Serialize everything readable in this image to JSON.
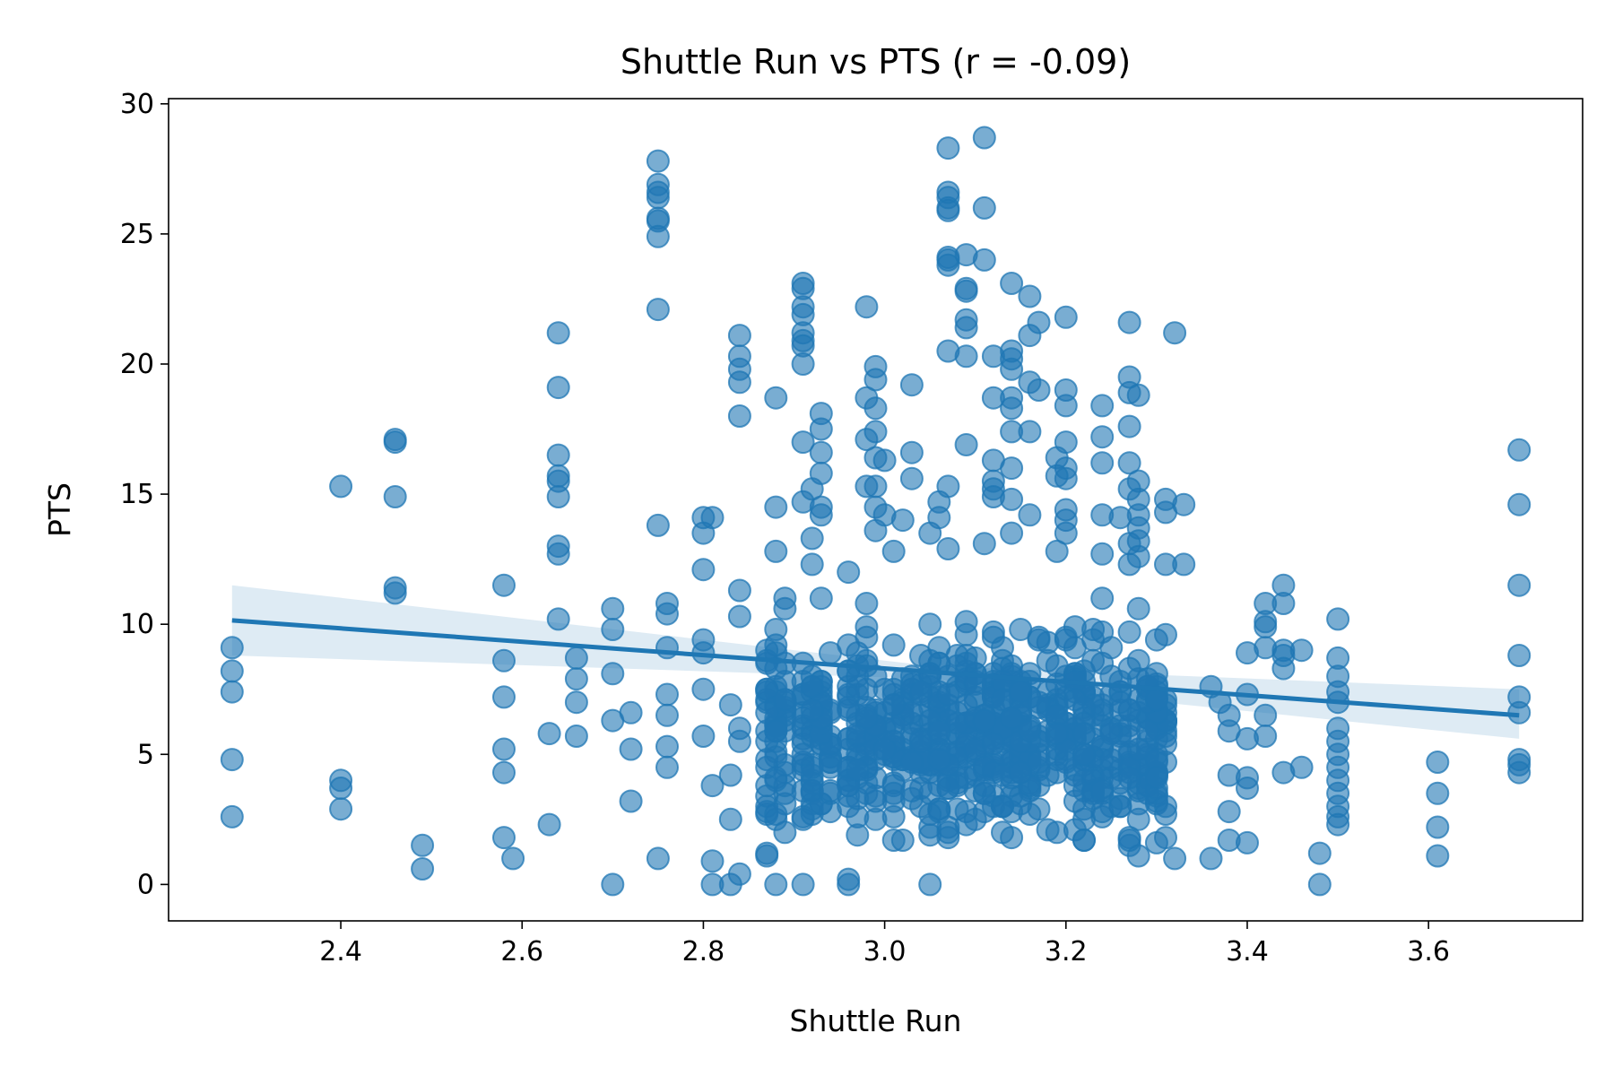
{
  "chart_data": {
    "type": "scatter",
    "title": "Shuttle Run vs PTS (r = -0.09)",
    "xlabel": "Shuttle Run",
    "ylabel": "PTS",
    "xlim": [
      2.21,
      3.77
    ],
    "ylim": [
      -1.4,
      30.2
    ],
    "xticks": [
      2.4,
      2.6,
      2.8,
      3.0,
      3.2,
      3.4,
      3.6
    ],
    "xtick_labels": [
      "2.4",
      "2.6",
      "2.8",
      "3.0",
      "3.2",
      "3.4",
      "3.6"
    ],
    "yticks": [
      0,
      5,
      10,
      15,
      20,
      25,
      30
    ],
    "ytick_labels": [
      "0",
      "5",
      "10",
      "15",
      "20",
      "25",
      "30"
    ],
    "grid": false,
    "point_color": "#1f77b4",
    "regression": {
      "x": [
        2.28,
        3.7
      ],
      "y": [
        10.15,
        6.5
      ],
      "ci_lower": [
        8.8,
        5.6
      ],
      "ci_upper": [
        11.5,
        7.5
      ],
      "ci_mid_x": 3.05,
      "ci_mid_lower": 7.9,
      "ci_mid_upper": 8.4
    },
    "anchor_points": [
      [
        2.28,
        9.1
      ],
      [
        2.28,
        8.2
      ],
      [
        2.28,
        7.4
      ],
      [
        2.28,
        4.8
      ],
      [
        2.28,
        2.6
      ],
      [
        2.4,
        15.3
      ],
      [
        2.4,
        4.0
      ],
      [
        2.4,
        3.7
      ],
      [
        2.4,
        2.9
      ],
      [
        2.46,
        17.1
      ],
      [
        2.46,
        17.0
      ],
      [
        2.46,
        14.9
      ],
      [
        2.46,
        11.4
      ],
      [
        2.46,
        11.2
      ],
      [
        2.49,
        1.5
      ],
      [
        2.49,
        0.6
      ],
      [
        2.58,
        11.5
      ],
      [
        2.58,
        8.6
      ],
      [
        2.58,
        7.2
      ],
      [
        2.58,
        5.2
      ],
      [
        2.58,
        4.3
      ],
      [
        2.58,
        1.8
      ],
      [
        2.59,
        1.0
      ],
      [
        2.63,
        5.8
      ],
      [
        2.63,
        2.3
      ],
      [
        2.64,
        21.2
      ],
      [
        2.64,
        19.1
      ],
      [
        2.64,
        16.5
      ],
      [
        2.64,
        15.7
      ],
      [
        2.64,
        15.5
      ],
      [
        2.64,
        14.9
      ],
      [
        2.64,
        13.0
      ],
      [
        2.64,
        12.7
      ],
      [
        2.64,
        10.2
      ],
      [
        2.66,
        8.7
      ],
      [
        2.66,
        7.9
      ],
      [
        2.66,
        7.0
      ],
      [
        2.66,
        5.7
      ],
      [
        2.7,
        10.6
      ],
      [
        2.7,
        9.8
      ],
      [
        2.7,
        8.1
      ],
      [
        2.7,
        6.3
      ],
      [
        2.7,
        0.0
      ],
      [
        2.72,
        6.6
      ],
      [
        2.72,
        5.2
      ],
      [
        2.72,
        3.2
      ],
      [
        2.75,
        27.8
      ],
      [
        2.75,
        26.9
      ],
      [
        2.75,
        26.6
      ],
      [
        2.75,
        26.4
      ],
      [
        2.75,
        25.6
      ],
      [
        2.75,
        25.5
      ],
      [
        2.75,
        24.9
      ],
      [
        2.75,
        22.1
      ],
      [
        2.75,
        13.8
      ],
      [
        2.75,
        1.0
      ],
      [
        2.76,
        10.8
      ],
      [
        2.76,
        10.4
      ],
      [
        2.76,
        9.1
      ],
      [
        2.76,
        7.3
      ],
      [
        2.76,
        6.5
      ],
      [
        2.76,
        5.3
      ],
      [
        2.76,
        4.5
      ],
      [
        2.8,
        14.1
      ],
      [
        2.8,
        13.5
      ],
      [
        2.8,
        12.1
      ],
      [
        2.81,
        14.1
      ],
      [
        2.8,
        9.4
      ],
      [
        2.8,
        8.9
      ],
      [
        2.8,
        7.5
      ],
      [
        2.8,
        5.7
      ],
      [
        2.81,
        3.8
      ],
      [
        2.81,
        0.9
      ],
      [
        2.81,
        0.0
      ],
      [
        2.83,
        2.5
      ],
      [
        2.83,
        0.0
      ],
      [
        2.83,
        6.9
      ],
      [
        2.83,
        4.2
      ],
      [
        2.84,
        21.1
      ],
      [
        2.84,
        20.3
      ],
      [
        2.84,
        19.8
      ],
      [
        2.84,
        19.3
      ],
      [
        2.84,
        18.0
      ],
      [
        2.84,
        11.3
      ],
      [
        2.84,
        10.3
      ],
      [
        2.84,
        6.0
      ],
      [
        2.84,
        5.5
      ],
      [
        2.84,
        0.4
      ],
      [
        2.87,
        1.1
      ],
      [
        2.87,
        3.8
      ],
      [
        2.87,
        5.9
      ],
      [
        2.88,
        18.7
      ],
      [
        2.88,
        14.5
      ],
      [
        2.88,
        12.8
      ],
      [
        2.88,
        9.8
      ],
      [
        2.88,
        0.0
      ],
      [
        2.89,
        11.0
      ],
      [
        2.89,
        10.6
      ],
      [
        2.89,
        2.0
      ],
      [
        2.91,
        23.1
      ],
      [
        2.91,
        22.9
      ],
      [
        2.91,
        22.2
      ],
      [
        2.91,
        21.9
      ],
      [
        2.91,
        21.2
      ],
      [
        2.91,
        20.9
      ],
      [
        2.91,
        20.7
      ],
      [
        2.91,
        20.0
      ],
      [
        2.91,
        17.0
      ],
      [
        2.91,
        14.7
      ],
      [
        2.91,
        0.0
      ],
      [
        2.92,
        15.2
      ],
      [
        2.92,
        13.3
      ],
      [
        2.92,
        12.3
      ],
      [
        2.93,
        18.1
      ],
      [
        2.93,
        17.5
      ],
      [
        2.93,
        16.6
      ],
      [
        2.93,
        15.8
      ],
      [
        2.93,
        14.5
      ],
      [
        2.93,
        14.2
      ],
      [
        2.93,
        11.0
      ],
      [
        2.96,
        0.0
      ],
      [
        2.96,
        0.2
      ],
      [
        2.96,
        12.0
      ],
      [
        2.98,
        22.2
      ],
      [
        2.98,
        18.7
      ],
      [
        2.98,
        17.1
      ],
      [
        2.98,
        15.3
      ],
      [
        2.99,
        19.9
      ],
      [
        2.99,
        19.4
      ],
      [
        2.99,
        18.3
      ],
      [
        2.99,
        17.4
      ],
      [
        2.99,
        16.4
      ],
      [
        2.99,
        15.3
      ],
      [
        2.99,
        14.5
      ],
      [
        2.99,
        13.6
      ],
      [
        3.0,
        16.3
      ],
      [
        3.0,
        14.2
      ],
      [
        3.01,
        12.8
      ],
      [
        3.03,
        19.2
      ],
      [
        3.03,
        16.6
      ],
      [
        3.03,
        15.6
      ],
      [
        3.02,
        14.0
      ],
      [
        3.05,
        13.5
      ],
      [
        3.05,
        0.0
      ],
      [
        3.06,
        14.7
      ],
      [
        3.06,
        14.1
      ],
      [
        3.07,
        28.3
      ],
      [
        3.07,
        26.6
      ],
      [
        3.07,
        26.4
      ],
      [
        3.07,
        26.0
      ],
      [
        3.07,
        25.9
      ],
      [
        3.07,
        24.1
      ],
      [
        3.07,
        24.0
      ],
      [
        3.07,
        23.8
      ],
      [
        3.07,
        20.5
      ],
      [
        3.07,
        15.3
      ],
      [
        3.07,
        12.9
      ],
      [
        3.09,
        22.9
      ],
      [
        3.09,
        22.8
      ],
      [
        3.09,
        21.7
      ],
      [
        3.09,
        21.4
      ],
      [
        3.09,
        20.3
      ],
      [
        3.09,
        16.9
      ],
      [
        3.09,
        24.2
      ],
      [
        3.11,
        28.7
      ],
      [
        3.11,
        26.0
      ],
      [
        3.11,
        24.0
      ],
      [
        3.11,
        13.1
      ],
      [
        3.12,
        20.3
      ],
      [
        3.12,
        18.7
      ],
      [
        3.12,
        16.3
      ],
      [
        3.12,
        15.5
      ],
      [
        3.12,
        15.2
      ],
      [
        3.12,
        14.9
      ],
      [
        3.14,
        23.1
      ],
      [
        3.14,
        20.5
      ],
      [
        3.14,
        20.2
      ],
      [
        3.14,
        19.8
      ],
      [
        3.14,
        18.7
      ],
      [
        3.14,
        18.3
      ],
      [
        3.14,
        17.4
      ],
      [
        3.14,
        16.0
      ],
      [
        3.14,
        14.8
      ],
      [
        3.14,
        13.5
      ],
      [
        3.16,
        22.6
      ],
      [
        3.16,
        21.1
      ],
      [
        3.16,
        19.3
      ],
      [
        3.16,
        17.4
      ],
      [
        3.16,
        14.2
      ],
      [
        3.17,
        21.6
      ],
      [
        3.17,
        19.0
      ],
      [
        3.2,
        21.8
      ],
      [
        3.2,
        19.0
      ],
      [
        3.2,
        18.4
      ],
      [
        3.2,
        17.0
      ],
      [
        3.2,
        16.0
      ],
      [
        3.2,
        15.6
      ],
      [
        3.2,
        14.4
      ],
      [
        3.2,
        14.0
      ],
      [
        3.2,
        13.5
      ],
      [
        3.19,
        16.4
      ],
      [
        3.19,
        15.7
      ],
      [
        3.19,
        12.8
      ],
      [
        3.24,
        18.4
      ],
      [
        3.24,
        17.2
      ],
      [
        3.24,
        16.2
      ],
      [
        3.24,
        14.2
      ],
      [
        3.24,
        12.7
      ],
      [
        3.24,
        11.0
      ],
      [
        3.26,
        14.1
      ],
      [
        3.27,
        21.6
      ],
      [
        3.27,
        19.5
      ],
      [
        3.27,
        18.9
      ],
      [
        3.27,
        17.6
      ],
      [
        3.27,
        16.2
      ],
      [
        3.27,
        15.2
      ],
      [
        3.27,
        13.1
      ],
      [
        3.27,
        12.3
      ],
      [
        3.28,
        18.8
      ],
      [
        3.28,
        15.5
      ],
      [
        3.28,
        14.8
      ],
      [
        3.28,
        14.2
      ],
      [
        3.28,
        13.7
      ],
      [
        3.28,
        13.2
      ],
      [
        3.28,
        12.6
      ],
      [
        3.32,
        21.2
      ],
      [
        3.31,
        14.8
      ],
      [
        3.31,
        14.3
      ],
      [
        3.33,
        14.6
      ],
      [
        3.31,
        12.3
      ],
      [
        3.33,
        12.3
      ],
      [
        3.32,
        1.0
      ],
      [
        3.31,
        1.8
      ],
      [
        3.3,
        3.1
      ],
      [
        3.36,
        7.6
      ],
      [
        3.37,
        7.0
      ],
      [
        3.36,
        1.0
      ],
      [
        3.38,
        6.5
      ],
      [
        3.38,
        5.9
      ],
      [
        3.38,
        4.2
      ],
      [
        3.38,
        2.8
      ],
      [
        3.38,
        1.7
      ],
      [
        3.4,
        8.9
      ],
      [
        3.4,
        7.3
      ],
      [
        3.4,
        5.6
      ],
      [
        3.4,
        4.1
      ],
      [
        3.4,
        3.7
      ],
      [
        3.4,
        1.6
      ],
      [
        3.42,
        10.8
      ],
      [
        3.42,
        10.1
      ],
      [
        3.42,
        9.9
      ],
      [
        3.42,
        9.1
      ],
      [
        3.42,
        6.5
      ],
      [
        3.42,
        5.7
      ],
      [
        3.44,
        11.5
      ],
      [
        3.44,
        10.8
      ],
      [
        3.44,
        9.0
      ],
      [
        3.44,
        8.8
      ],
      [
        3.44,
        8.3
      ],
      [
        3.44,
        4.3
      ],
      [
        3.46,
        9.0
      ],
      [
        3.46,
        4.5
      ],
      [
        3.48,
        1.2
      ],
      [
        3.48,
        0.0
      ],
      [
        3.5,
        10.2
      ],
      [
        3.5,
        8.7
      ],
      [
        3.5,
        8.0
      ],
      [
        3.5,
        7.4
      ],
      [
        3.5,
        7.0
      ],
      [
        3.5,
        6.0
      ],
      [
        3.5,
        5.5
      ],
      [
        3.5,
        5.0
      ],
      [
        3.5,
        4.5
      ],
      [
        3.5,
        4.0
      ],
      [
        3.5,
        3.5
      ],
      [
        3.5,
        3.0
      ],
      [
        3.5,
        2.6
      ],
      [
        3.5,
        2.3
      ],
      [
        3.61,
        4.7
      ],
      [
        3.61,
        3.5
      ],
      [
        3.61,
        2.2
      ],
      [
        3.61,
        1.1
      ],
      [
        3.7,
        16.7
      ],
      [
        3.7,
        14.6
      ],
      [
        3.7,
        11.5
      ],
      [
        3.7,
        8.8
      ],
      [
        3.7,
        7.2
      ],
      [
        3.7,
        6.6
      ],
      [
        3.7,
        4.8
      ],
      [
        3.7,
        4.6
      ],
      [
        3.7,
        4.3
      ]
    ],
    "dense_band_x": [
      2.87,
      2.88,
      2.89,
      2.91,
      2.92,
      2.93,
      2.94,
      2.96,
      2.97,
      2.98,
      2.99,
      3.0,
      3.01,
      3.02,
      3.03,
      3.04,
      3.05,
      3.06,
      3.07,
      3.08,
      3.09,
      3.1,
      3.11,
      3.12,
      3.13,
      3.14,
      3.15,
      3.16,
      3.17,
      3.18,
      3.19,
      3.2,
      3.21,
      3.22,
      3.23,
      3.24,
      3.25,
      3.26,
      3.27,
      3.28,
      3.29,
      3.3,
      3.31
    ],
    "dense_band_y_range": [
      0.3,
      11.2
    ],
    "dense_band_seed": 1337,
    "dense_band_count": 760
  }
}
